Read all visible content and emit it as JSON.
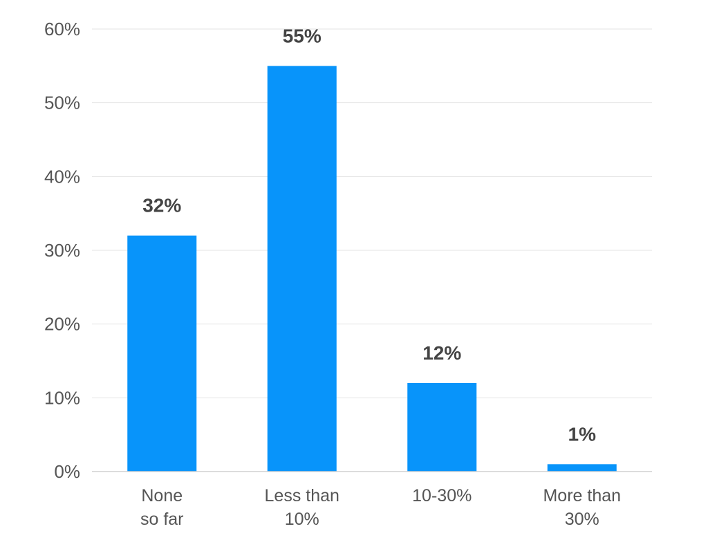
{
  "chart_data": {
    "type": "bar",
    "title": "",
    "xlabel": "",
    "ylabel": "",
    "categories": [
      [
        "None",
        "so far"
      ],
      [
        "Less than",
        "10%"
      ],
      [
        "10-30%"
      ],
      [
        "More than",
        "30%"
      ]
    ],
    "values": [
      32,
      55,
      12,
      1
    ],
    "data_labels": [
      "32%",
      "55%",
      "12%",
      "1%"
    ],
    "ylim": [
      0,
      60
    ],
    "yticks": [
      0,
      10,
      20,
      30,
      40,
      50,
      60
    ],
    "ytick_labels": [
      "0%",
      "10%",
      "20%",
      "30%",
      "40%",
      "50%",
      "60%"
    ],
    "grid": true,
    "legend": "none",
    "bar_color": "#0894fa"
  }
}
